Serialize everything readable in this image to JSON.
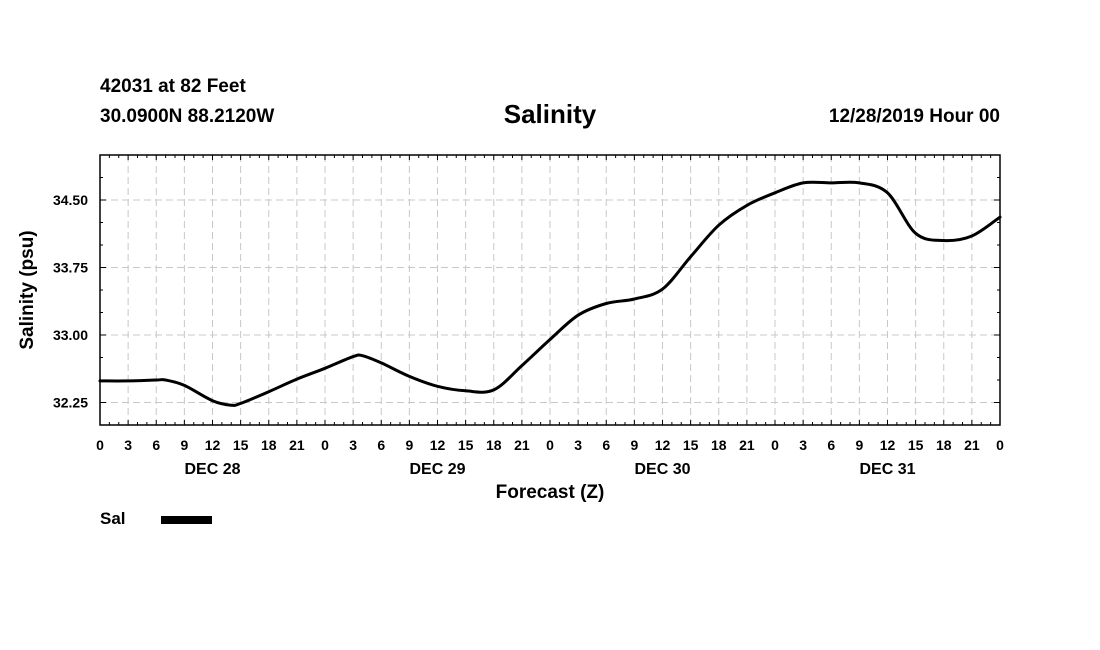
{
  "header": {
    "station": "42031 at 82 Feet",
    "coords": "30.0900N 88.2120W",
    "run_time": "12/28/2019 Hour 00"
  },
  "legend": {
    "label": "Sal"
  },
  "chart_data": {
    "type": "line",
    "title": "Salinity",
    "xlabel": "Forecast (Z)",
    "ylabel": "Salinity (psu)",
    "x_unit": "forecast hour",
    "x_tick_labels": [
      "0",
      "3",
      "6",
      "9",
      "12",
      "15",
      "18",
      "21",
      "0",
      "3",
      "6",
      "9",
      "12",
      "15",
      "18",
      "21",
      "0",
      "3",
      "6",
      "9",
      "12",
      "15",
      "18",
      "21",
      "0",
      "3",
      "6",
      "9",
      "12",
      "15",
      "18",
      "21",
      "0"
    ],
    "day_labels": [
      {
        "label": "DEC 28",
        "center_hour": 12
      },
      {
        "label": "DEC 29",
        "center_hour": 36
      },
      {
        "label": "DEC 30",
        "center_hour": 60
      },
      {
        "label": "DEC 31",
        "center_hour": 84
      }
    ],
    "xlim": [
      0,
      96
    ],
    "ylim": [
      32.0,
      35.0
    ],
    "yticks": [
      32.25,
      33.0,
      33.75,
      34.5
    ],
    "ytick_labels": [
      "32.25",
      "33.00",
      "33.75",
      "34.50"
    ],
    "grid": true,
    "series": [
      {
        "name": "Sal",
        "color": "#000000",
        "x": [
          0,
          3,
          6,
          7,
          9,
          12,
          14,
          15,
          18,
          21,
          24,
          27,
          28,
          30,
          33,
          36,
          39,
          42,
          45,
          48,
          51,
          54,
          57,
          60,
          63,
          66,
          69,
          72,
          75,
          78,
          81,
          84,
          87,
          90,
          93,
          96
        ],
        "y": [
          32.49,
          32.49,
          32.5,
          32.5,
          32.44,
          32.27,
          32.22,
          32.24,
          32.37,
          32.51,
          32.63,
          32.76,
          32.77,
          32.69,
          32.54,
          32.43,
          32.38,
          32.39,
          32.66,
          32.95,
          33.22,
          33.35,
          33.4,
          33.51,
          33.87,
          34.22,
          34.44,
          34.58,
          34.69,
          34.69,
          34.69,
          34.58,
          34.13,
          34.05,
          34.1,
          34.31
        ]
      }
    ]
  }
}
